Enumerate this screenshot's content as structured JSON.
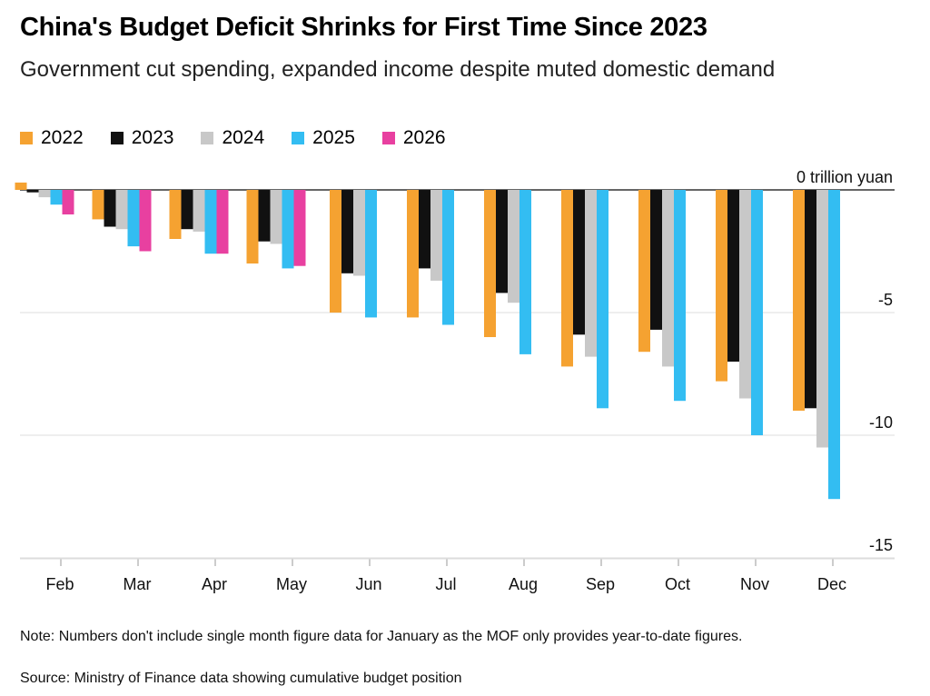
{
  "header": {
    "title": "China's Budget Deficit Shrinks for First Time Since 2023",
    "subtitle": "Government cut spending, expanded income despite muted domestic demand"
  },
  "footer": {
    "note": "Note: Numbers don't include single month figure data for January as the MOF only provides year-to-date figures.",
    "source": "Source: Ministry of Finance data showing cumulative budget position"
  },
  "chart_data": {
    "type": "bar",
    "title": "China's Budget Deficit Shrinks for First Time Since 2023",
    "subtitle": "Government cut spending, expanded income despite muted domestic demand",
    "categories": [
      "Feb",
      "Mar",
      "Apr",
      "May",
      "Jun",
      "Jul",
      "Aug",
      "Sep",
      "Oct",
      "Nov",
      "Dec"
    ],
    "series": [
      {
        "name": "2022",
        "color": "#f5a231",
        "values": [
          0.3,
          -1.2,
          -2.0,
          -3.0,
          -5.0,
          -5.2,
          -6.0,
          -7.2,
          -6.6,
          -7.8,
          -9.0
        ]
      },
      {
        "name": "2023",
        "color": "#111111",
        "values": [
          -0.1,
          -1.5,
          -1.6,
          -2.1,
          -3.4,
          -3.2,
          -4.2,
          -5.9,
          -5.7,
          -7.0,
          -8.9
        ]
      },
      {
        "name": "2024",
        "color": "#c8c8c8",
        "values": [
          -0.3,
          -1.6,
          -1.7,
          -2.2,
          -3.5,
          -3.7,
          -4.6,
          -6.8,
          -7.2,
          -8.5,
          -10.5
        ]
      },
      {
        "name": "2025",
        "color": "#33bdf2",
        "values": [
          -0.6,
          -2.3,
          -2.6,
          -3.2,
          -5.2,
          -5.5,
          -6.7,
          -8.9,
          -8.6,
          -10.0,
          -12.6
        ]
      },
      {
        "name": "2026",
        "color": "#e840a0",
        "values": [
          -1.0,
          -2.5,
          -2.6,
          -3.1,
          null,
          null,
          null,
          null,
          null,
          null,
          null
        ]
      }
    ],
    "y_ticks": [
      0,
      -5,
      -10,
      -15
    ],
    "y_tick_labels": [
      "0 trillion yuan",
      "-5",
      "-10",
      "-15"
    ],
    "ylim": [
      -15,
      0.5
    ],
    "grid": true,
    "legend_position": "top-left"
  }
}
